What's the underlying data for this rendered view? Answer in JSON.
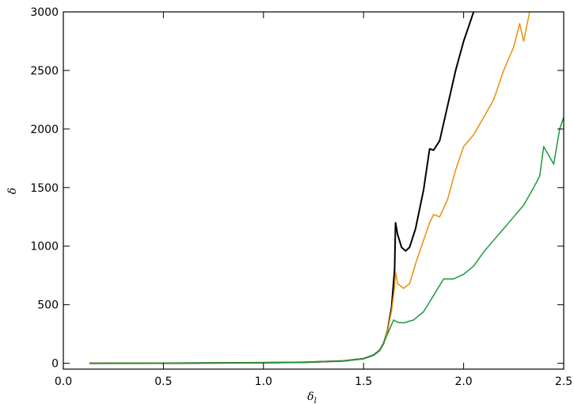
{
  "chart_data": {
    "type": "line",
    "title": "",
    "xlabel": "δ",
    "xlabel_subscript": "l",
    "ylabel": "δ",
    "xlim": [
      0.0,
      2.5
    ],
    "ylim": [
      -50,
      3000
    ],
    "xticks": [
      "0.0",
      "0.5",
      "1.0",
      "1.5",
      "2.0",
      "2.5"
    ],
    "yticks": [
      "0",
      "500",
      "1000",
      "1500",
      "2000",
      "2500",
      "3000"
    ],
    "xtick_values": [
      0.0,
      0.5,
      1.0,
      1.5,
      2.0,
      2.5
    ],
    "ytick_values": [
      0,
      500,
      1000,
      1500,
      2000,
      2500,
      3000
    ],
    "grid": false,
    "legend": "none",
    "series": [
      {
        "color": "#000000",
        "x": [
          0.13,
          0.5,
          1.0,
          1.2,
          1.4,
          1.5,
          1.55,
          1.58,
          1.6,
          1.62,
          1.64,
          1.655,
          1.66,
          1.67,
          1.69,
          1.71,
          1.73,
          1.76,
          1.8,
          1.83,
          1.85,
          1.88,
          1.92,
          1.96,
          2.0,
          2.03,
          2.05
        ],
        "y": [
          0,
          1,
          5,
          8,
          20,
          40,
          70,
          110,
          170,
          280,
          480,
          800,
          1200,
          1100,
          990,
          960,
          990,
          1150,
          1480,
          1830,
          1820,
          1900,
          2200,
          2500,
          2750,
          2900,
          3000
        ]
      },
      {
        "color": "#E8900C",
        "x": [
          0.13,
          0.5,
          1.0,
          1.2,
          1.4,
          1.5,
          1.55,
          1.58,
          1.6,
          1.62,
          1.64,
          1.655,
          1.66,
          1.67,
          1.7,
          1.73,
          1.76,
          1.8,
          1.83,
          1.85,
          1.88,
          1.92,
          1.96,
          2.0,
          2.05,
          2.1,
          2.15,
          2.2,
          2.25,
          2.28,
          2.3,
          2.33
        ],
        "y": [
          0,
          1,
          5,
          8,
          20,
          40,
          70,
          110,
          170,
          280,
          450,
          650,
          780,
          680,
          640,
          680,
          850,
          1050,
          1200,
          1270,
          1250,
          1400,
          1650,
          1850,
          1950,
          2100,
          2250,
          2500,
          2700,
          2900,
          2750,
          3000
        ]
      },
      {
        "color": "#1E9A3C",
        "x": [
          0.13,
          0.5,
          1.0,
          1.2,
          1.4,
          1.5,
          1.55,
          1.58,
          1.6,
          1.62,
          1.64,
          1.65,
          1.67,
          1.7,
          1.75,
          1.8,
          1.85,
          1.9,
          1.95,
          2.0,
          2.05,
          2.1,
          2.15,
          2.2,
          2.25,
          2.3,
          2.35,
          2.38,
          2.4,
          2.45,
          2.48,
          2.5
        ],
        "y": [
          0,
          1,
          5,
          8,
          20,
          40,
          70,
          110,
          170,
          250,
          330,
          370,
          350,
          345,
          370,
          440,
          580,
          720,
          720,
          760,
          830,
          950,
          1050,
          1150,
          1250,
          1350,
          1500,
          1600,
          1850,
          1700,
          2000,
          2100
        ]
      }
    ]
  }
}
